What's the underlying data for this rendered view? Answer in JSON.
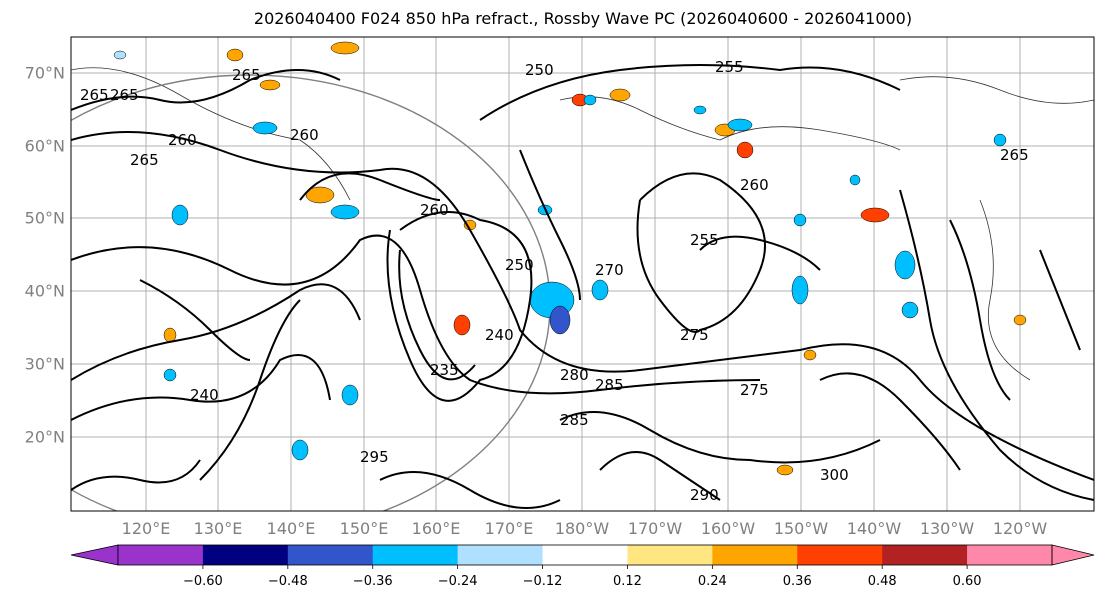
{
  "title": "2026040400 F024 850 hPa refract., Rossby Wave PC (2026040600 - 2026041000)",
  "map": {
    "lat_labels": [
      "70°N",
      "60°N",
      "50°N",
      "40°N",
      "30°N",
      "20°N"
    ],
    "lon_labels": [
      "120°E",
      "130°E",
      "140°E",
      "150°E",
      "160°E",
      "170°E",
      "180°W",
      "170°W",
      "160°W",
      "150°W",
      "140°W",
      "130°W",
      "120°W"
    ],
    "contour_labels": [
      "265",
      "265",
      "265",
      "260",
      "265",
      "260",
      "250",
      "255",
      "270",
      "260",
      "255",
      "265",
      "260",
      "250",
      "240",
      "275",
      "285",
      "280",
      "275",
      "235",
      "240",
      "285",
      "290",
      "300",
      "295"
    ]
  },
  "colorbar": {
    "tick_labels": [
      "−0.60",
      "−0.48",
      "−0.36",
      "−0.24",
      "−0.12",
      "0.12",
      "0.24",
      "0.36",
      "0.48",
      "0.60"
    ],
    "colors": [
      "#9933cc",
      "#000080",
      "#3355cc",
      "#00bfff",
      "#b0e0ff",
      "#ffffff",
      "#ffe680",
      "#ffa500",
      "#ff4000",
      "#b22222",
      "#ff88aa"
    ]
  }
}
